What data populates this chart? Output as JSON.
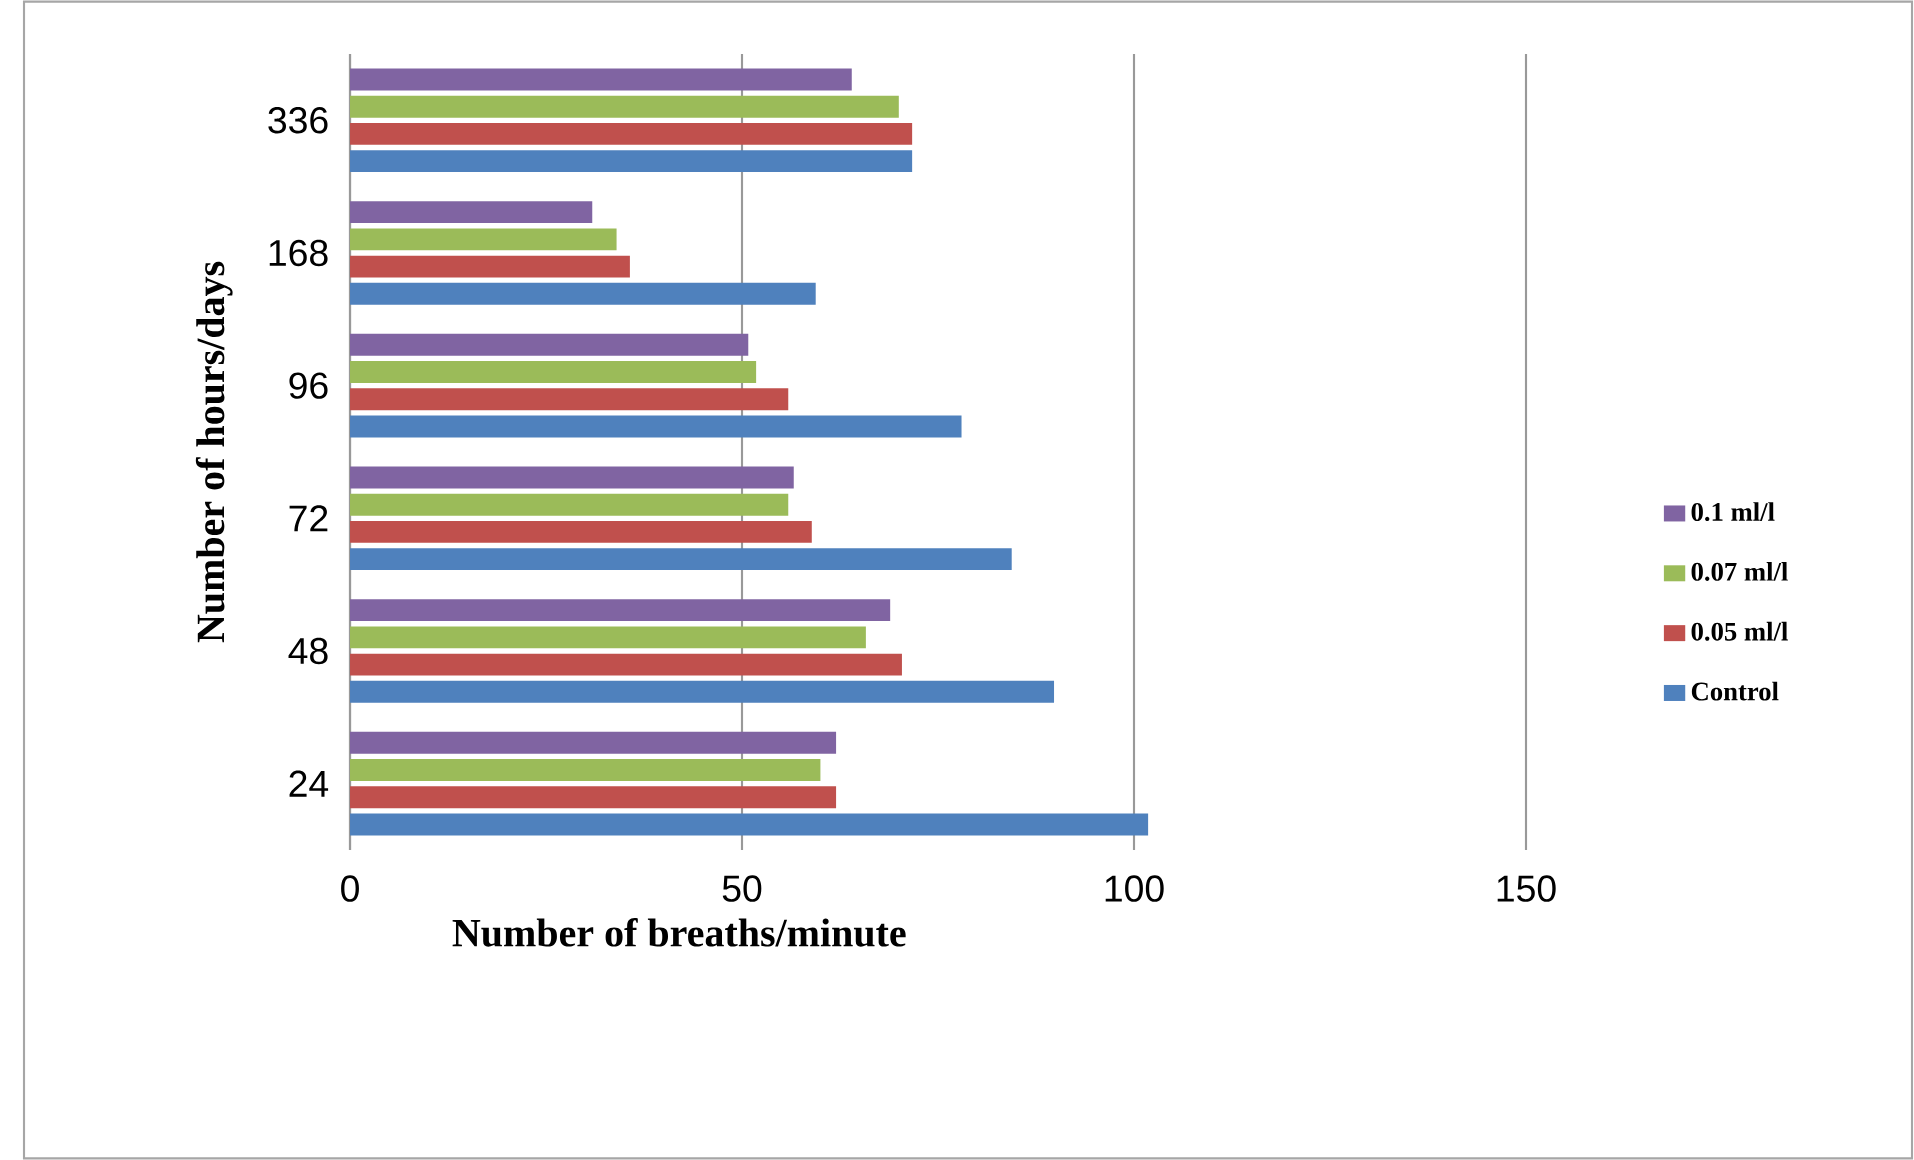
{
  "chart_data": {
    "type": "bar",
    "orientation": "horizontal",
    "xlabel": "Number of breaths/minute",
    "ylabel": "Number of hours/days",
    "categories": [
      "336",
      "168",
      "96",
      "72",
      "48",
      "24"
    ],
    "series": [
      {
        "name": "Control",
        "color": "#4f81bd",
        "values": [
          71.7,
          59.4,
          78,
          84.4,
          89.8,
          101.8
        ]
      },
      {
        "name": "0.05 ml/l",
        "color": "#c0504d",
        "values": [
          71.7,
          35.7,
          55.9,
          58.9,
          70.4,
          62
        ]
      },
      {
        "name": "0.07 ml/l",
        "color": "#9bbb59",
        "values": [
          70,
          34,
          51.8,
          55.9,
          65.8,
          60
        ]
      },
      {
        "name": "0.1 ml/l",
        "color": "#8064a2",
        "values": [
          64,
          30.9,
          50.8,
          56.6,
          68.9,
          62
        ]
      }
    ],
    "xlim": [
      0,
      150
    ],
    "xticks": [
      0,
      50,
      100,
      150
    ],
    "grid": "x",
    "legend": "right"
  }
}
